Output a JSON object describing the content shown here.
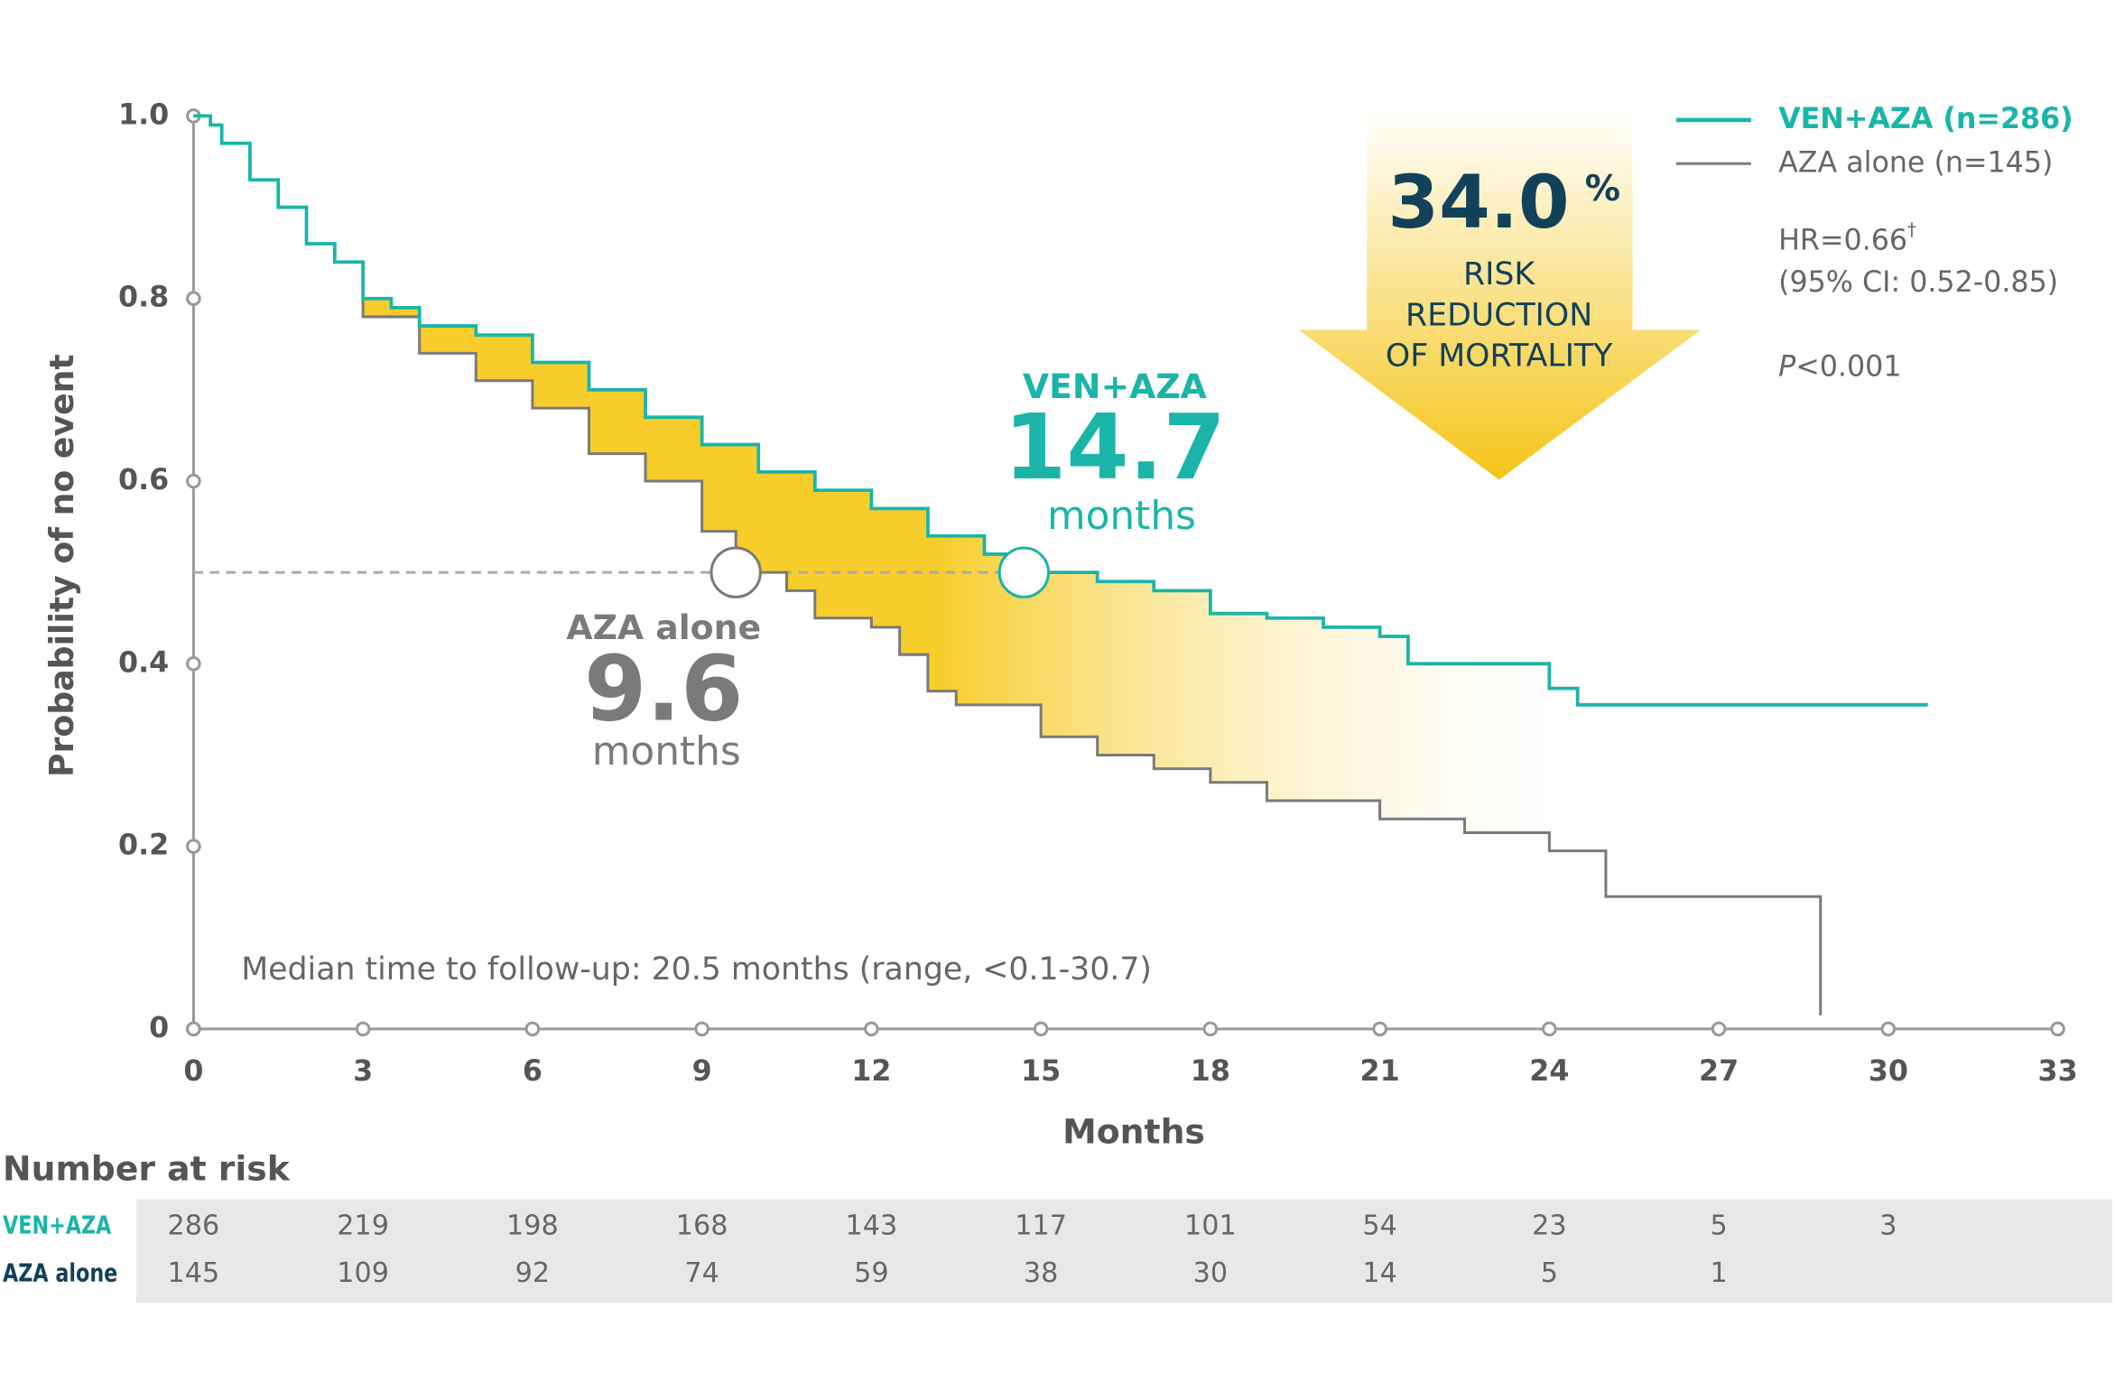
{
  "chart_data": {
    "type": "km",
    "y_label": "Probability of no event",
    "x_label": "Months",
    "xlim": [
      0,
      33
    ],
    "ylim": [
      0,
      1
    ],
    "xticks": [
      0,
      3,
      6,
      9,
      12,
      15,
      18,
      21,
      24,
      27,
      30,
      33
    ],
    "yticks": [
      0,
      0.2,
      0.4,
      0.6,
      0.8,
      {
        "value": 1,
        "label": "1.0"
      }
    ],
    "series": [
      {
        "name": "VEN+AZA (n=286)",
        "color": "#1ab5a8",
        "x": [
          0,
          0.3,
          0.5,
          1,
          1.5,
          2,
          2.5,
          3,
          3.5,
          4,
          5,
          6,
          7,
          8,
          9,
          10,
          11,
          12,
          13,
          14,
          14.7,
          16,
          17,
          18,
          19,
          20,
          21,
          21.5,
          24,
          24.5,
          30.7
        ],
        "y": [
          1.0,
          0.99,
          0.97,
          0.93,
          0.9,
          0.86,
          0.84,
          0.8,
          0.79,
          0.77,
          0.76,
          0.73,
          0.7,
          0.67,
          0.64,
          0.61,
          0.59,
          0.57,
          0.54,
          0.52,
          0.5,
          0.49,
          0.48,
          0.455,
          0.45,
          0.44,
          0.43,
          0.4,
          0.373,
          0.355,
          0.355
        ]
      },
      {
        "name": "AZA alone (n=145)",
        "color": "#7a7a7a",
        "x": [
          0,
          0.3,
          0.5,
          1,
          1.5,
          2,
          2.5,
          3,
          4,
          5,
          6,
          7,
          8,
          9,
          9.6,
          10.5,
          11,
          12,
          12.5,
          13,
          13.5,
          15,
          16,
          17,
          18,
          19,
          21,
          22.5,
          24,
          25,
          28.8
        ],
        "y": [
          1.0,
          0.99,
          0.97,
          0.93,
          0.9,
          0.86,
          0.84,
          0.78,
          0.74,
          0.71,
          0.68,
          0.63,
          0.6,
          0.545,
          0.5,
          0.48,
          0.45,
          0.44,
          0.41,
          0.37,
          0.355,
          0.32,
          0.3,
          0.285,
          0.27,
          0.25,
          0.23,
          0.215,
          0.195,
          0.145,
          0.015
        ]
      }
    ],
    "median_level": 0.5,
    "medians": [
      {
        "name": "VEN+AZA",
        "value": 14.7,
        "unit": "months"
      },
      {
        "name": "AZA alone",
        "value": 9.6,
        "unit": "months"
      }
    ],
    "risk_reduction": {
      "value": "34.0",
      "unit": "%",
      "lines": [
        "RISK",
        "REDUCTION",
        "OF MORTALITY"
      ]
    },
    "hr": {
      "text": "HR=0.66",
      "mark": "†",
      "ci": "(95% CI: 0.52-0.85)",
      "p_symbol": "P",
      "p_value": "<0.001"
    },
    "footnote": "Median time to follow-up: 20.5 months (range, <0.1-30.7)",
    "risk_table": {
      "title": "Number at risk",
      "rows": [
        {
          "name": "VEN+AZA",
          "values": [
            286,
            219,
            198,
            168,
            143,
            117,
            101,
            54,
            23,
            5,
            3
          ]
        },
        {
          "name": "AZA alone",
          "values": [
            145,
            109,
            92,
            74,
            59,
            38,
            30,
            14,
            5,
            1
          ]
        }
      ]
    }
  }
}
